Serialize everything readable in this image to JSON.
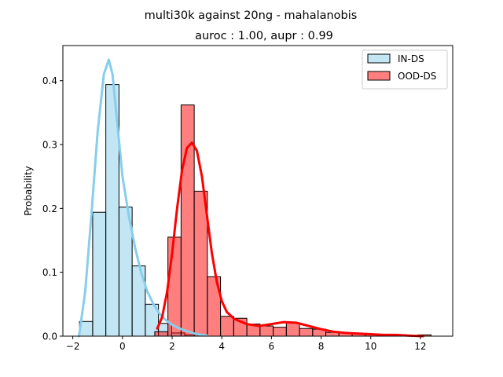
{
  "chart_data": {
    "type": "histogram",
    "title": "multi30k against 20ng  - mahalanobis",
    "subtitle": "auroc : 1.00, aupr : 0.99",
    "xlabel": "",
    "ylabel": "Probability",
    "xlim": [
      -2.4,
      13.3
    ],
    "ylim": [
      0,
      0.455
    ],
    "xticks": [
      -2,
      0,
      2,
      4,
      6,
      8,
      10,
      12
    ],
    "yticks": [
      0.0,
      0.1,
      0.2,
      0.3,
      0.4
    ],
    "ytick_labels": [
      "0.0",
      "0.1",
      "0.2",
      "0.3",
      "0.4"
    ],
    "grid": false,
    "legend_position": "top-right",
    "bin_width": 0.53,
    "series": [
      {
        "name": "IN-DS",
        "fill_color": "#87ceeb",
        "fill_opacity": 0.5,
        "kde_color": "#87ceeb",
        "bins": [
          {
            "start": -1.73,
            "value": 0.023
          },
          {
            "start": -1.2,
            "value": 0.194
          },
          {
            "start": -0.67,
            "value": 0.394
          },
          {
            "start": -0.14,
            "value": 0.202
          },
          {
            "start": 0.39,
            "value": 0.11
          },
          {
            "start": 0.92,
            "value": 0.05
          },
          {
            "start": 1.45,
            "value": 0.02
          },
          {
            "start": 1.98,
            "value": 0.005
          },
          {
            "start": 2.51,
            "value": 0.002
          }
        ],
        "kde": [
          [
            -1.75,
            0.0
          ],
          [
            -1.5,
            0.07
          ],
          [
            -1.25,
            0.19
          ],
          [
            -1.0,
            0.32
          ],
          [
            -0.75,
            0.41
          ],
          [
            -0.55,
            0.433
          ],
          [
            -0.4,
            0.41
          ],
          [
            -0.2,
            0.33
          ],
          [
            0.0,
            0.25
          ],
          [
            0.25,
            0.19
          ],
          [
            0.5,
            0.14
          ],
          [
            0.75,
            0.1
          ],
          [
            1.0,
            0.07
          ],
          [
            1.25,
            0.05
          ],
          [
            1.5,
            0.035
          ],
          [
            1.75,
            0.025
          ],
          [
            2.0,
            0.018
          ],
          [
            2.3,
            0.012
          ],
          [
            2.6,
            0.008
          ],
          [
            2.9,
            0.004
          ],
          [
            3.2,
            0.002
          ],
          [
            3.4,
            0.001
          ]
        ]
      },
      {
        "name": "OOD-DS",
        "fill_color": "#ff0000",
        "fill_opacity": 0.5,
        "kde_color": "#ff0000",
        "bins": [
          {
            "start": 1.3,
            "value": 0.007
          },
          {
            "start": 1.83,
            "value": 0.155
          },
          {
            "start": 2.36,
            "value": 0.362
          },
          {
            "start": 2.89,
            "value": 0.227
          },
          {
            "start": 3.42,
            "value": 0.093
          },
          {
            "start": 3.95,
            "value": 0.031
          },
          {
            "start": 4.48,
            "value": 0.028
          },
          {
            "start": 5.01,
            "value": 0.019
          },
          {
            "start": 5.54,
            "value": 0.016
          },
          {
            "start": 6.07,
            "value": 0.014
          },
          {
            "start": 6.6,
            "value": 0.021
          },
          {
            "start": 7.13,
            "value": 0.012
          },
          {
            "start": 7.66,
            "value": 0.011
          },
          {
            "start": 8.19,
            "value": 0.006
          },
          {
            "start": 8.72,
            "value": 0.005
          },
          {
            "start": 9.25,
            "value": 0.004
          },
          {
            "start": 9.78,
            "value": 0.003
          },
          {
            "start": 10.31,
            "value": 0.002
          },
          {
            "start": 10.84,
            "value": 0.002
          },
          {
            "start": 11.37,
            "value": 0.001
          },
          {
            "start": 11.9,
            "value": 0.002
          }
        ],
        "kde": [
          [
            1.4,
            0.012
          ],
          [
            1.6,
            0.03
          ],
          [
            1.8,
            0.07
          ],
          [
            2.0,
            0.13
          ],
          [
            2.2,
            0.2
          ],
          [
            2.4,
            0.26
          ],
          [
            2.6,
            0.295
          ],
          [
            2.8,
            0.303
          ],
          [
            3.0,
            0.29
          ],
          [
            3.2,
            0.25
          ],
          [
            3.4,
            0.19
          ],
          [
            3.6,
            0.13
          ],
          [
            3.8,
            0.085
          ],
          [
            4.0,
            0.055
          ],
          [
            4.2,
            0.038
          ],
          [
            4.5,
            0.027
          ],
          [
            5.0,
            0.019
          ],
          [
            5.5,
            0.016
          ],
          [
            6.0,
            0.019
          ],
          [
            6.5,
            0.022
          ],
          [
            7.0,
            0.021
          ],
          [
            7.5,
            0.016
          ],
          [
            8.0,
            0.011
          ],
          [
            8.5,
            0.007
          ],
          [
            9.0,
            0.005
          ],
          [
            9.5,
            0.004
          ],
          [
            10.0,
            0.003
          ],
          [
            10.5,
            0.002
          ],
          [
            11.0,
            0.002
          ],
          [
            11.5,
            0.001
          ],
          [
            12.1,
            0.0
          ]
        ]
      }
    ]
  }
}
